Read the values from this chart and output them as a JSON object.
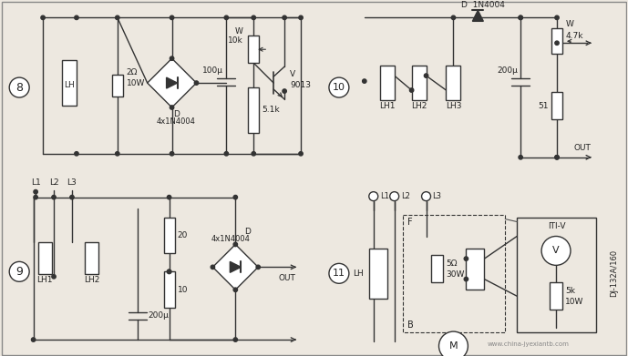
{
  "bg_color": "#ede8e0",
  "line_color": "#333333",
  "text_color": "#222222",
  "c8_label": "8",
  "c9_label": "9",
  "c10_label": "10",
  "c11_label": "11",
  "c8": {
    "LH": "LH",
    "R1": "2Ω",
    "R1b": "10W",
    "cap": "100μ",
    "W": "W",
    "Wk": "10k",
    "D": "D",
    "D4": "4x1N4004",
    "R2": "5.1k",
    "V": "V",
    "V9": "9013"
  },
  "c9": {
    "L1": "L1",
    "L2": "L2",
    "L3": "L3",
    "LH1": "LH1",
    "LH2": "LH2",
    "R1": "20",
    "R2": "10",
    "cap": "200μ",
    "D": "D",
    "D4": "4x1N4004",
    "OUT": "OUT"
  },
  "c10": {
    "LH1": "LH1",
    "LH2": "LH2",
    "LH3": "LH3",
    "D": "D  1N4004",
    "cap": "200μ",
    "W": "W",
    "Wk": "4.7k",
    "R": "51",
    "OUT": "OUT"
  },
  "c11": {
    "L1": "L1",
    "L2": "L2",
    "L3": "L3",
    "LH": "LH",
    "R1": "5Ω",
    "R1b": "30W",
    "F": "F",
    "B": "B",
    "M": "M",
    "label": "ITI-V",
    "R2": "5k",
    "R2b": "10W",
    "V": "V",
    "DJ": "DJ-132A/160"
  },
  "watermark": "www.china-jyexiantb.com"
}
